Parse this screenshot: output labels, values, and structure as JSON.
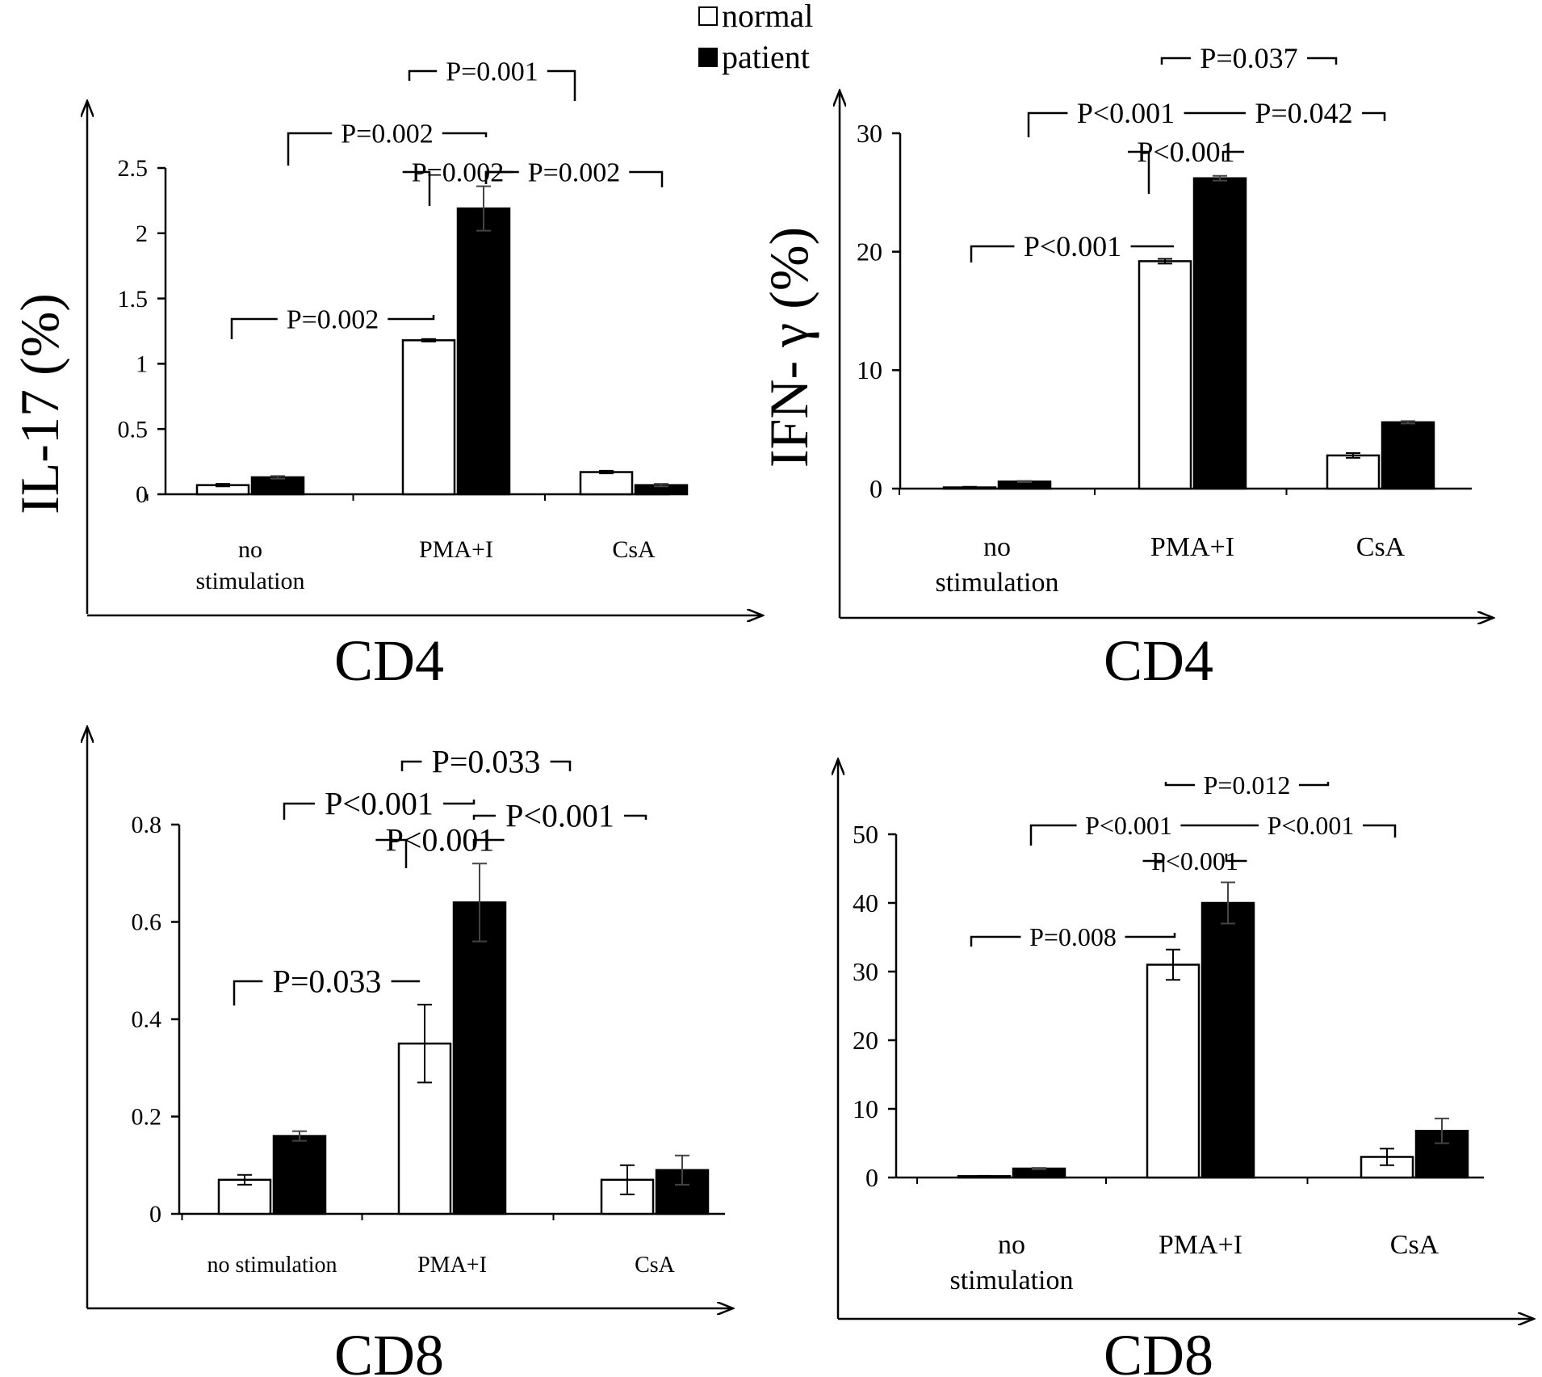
{
  "legend": {
    "entries": [
      {
        "label": "normal",
        "color": "#ffffff"
      },
      {
        "label": "patient",
        "color": "#000000"
      }
    ],
    "placement": "top-center"
  },
  "panel_labels": {
    "il17_ylabel": "IL-17 (%)",
    "ifng_ylabel": "IFN- γ (%)",
    "cd4_left": "CD4",
    "cd4_right": "CD4",
    "cd8_left": "CD8",
    "cd8_right": "CD8"
  },
  "chart_data": [
    {
      "type": "bar",
      "id": "il17-cd4",
      "categories": [
        [
          "no",
          "stimulation"
        ],
        [
          "PMA+I"
        ],
        [
          "CsA"
        ]
      ],
      "series": [
        {
          "name": "normal",
          "values": [
            0.07,
            1.18,
            0.17
          ],
          "errors": [
            0.01,
            0.01,
            0.01
          ]
        },
        {
          "name": "patient",
          "values": [
            0.13,
            2.19,
            0.07
          ],
          "errors": [
            0.01,
            0.17,
            0.01
          ]
        }
      ],
      "ylim": [
        0,
        2.5
      ],
      "yticks": [
        "0",
        "0.5",
        "1",
        "1.5",
        "2",
        "2.5"
      ],
      "ytick_values": [
        0,
        0.5,
        1,
        1.5,
        2,
        2.5
      ],
      "annotations": [
        "P=0.001",
        "P=0.002",
        "P=0.002",
        "P=0.002",
        "P=0.002"
      ]
    },
    {
      "type": "bar",
      "id": "ifng-cd4",
      "categories": [
        [
          "no",
          "stimulation"
        ],
        [
          "PMA+I"
        ],
        [
          "CsA"
        ]
      ],
      "series": [
        {
          "name": "normal",
          "values": [
            0.1,
            19.2,
            2.8
          ],
          "errors": [
            0.05,
            0.2,
            0.2
          ]
        },
        {
          "name": "patient",
          "values": [
            0.6,
            26.2,
            5.6
          ],
          "errors": [
            0.05,
            0.2,
            0.1
          ]
        }
      ],
      "ylim": [
        0,
        30
      ],
      "yticks": [
        "0",
        "10",
        "20",
        "30"
      ],
      "ytick_values": [
        0,
        10,
        20,
        30
      ],
      "annotations": [
        "P=0.037",
        "P<0.001",
        "P<0.001",
        "P<0.001",
        "P=0.042"
      ]
    },
    {
      "type": "bar",
      "id": "il17-cd8",
      "categories": [
        [
          "no stimulation"
        ],
        [
          "PMA+I"
        ],
        [
          "CsA"
        ]
      ],
      "series": [
        {
          "name": "normal",
          "values": [
            0.07,
            0.35,
            0.07
          ],
          "errors": [
            0.01,
            0.08,
            0.03
          ]
        },
        {
          "name": "patient",
          "values": [
            0.16,
            0.64,
            0.09
          ],
          "errors": [
            0.01,
            0.08,
            0.03
          ]
        }
      ],
      "ylim": [
        0,
        0.8
      ],
      "yticks": [
        "0",
        "0.2",
        "0.4",
        "0.6",
        "0.8"
      ],
      "ytick_values": [
        0,
        0.2,
        0.4,
        0.6,
        0.8
      ],
      "annotations": [
        "P=0.033",
        "P<0.001",
        "P<0.001",
        "P<0.001",
        "P=0.033"
      ]
    },
    {
      "type": "bar",
      "id": "ifng-cd8",
      "categories": [
        [
          "no",
          "stimulation"
        ],
        [
          "PMA+I"
        ],
        [
          "CsA"
        ]
      ],
      "series": [
        {
          "name": "normal",
          "values": [
            0.2,
            31,
            3
          ],
          "errors": [
            0.05,
            2.2,
            1.2
          ]
        },
        {
          "name": "patient",
          "values": [
            1.3,
            40,
            6.8
          ],
          "errors": [
            0.1,
            3,
            1.8
          ]
        }
      ],
      "ylim": [
        0,
        50
      ],
      "yticks": [
        "0",
        "10",
        "20",
        "30",
        "40",
        "50"
      ],
      "ytick_values": [
        0,
        10,
        20,
        30,
        40,
        50
      ],
      "annotations": [
        "P=0.008",
        "P<0.001",
        "P<0.001",
        "P<0.001",
        "P=0.012"
      ]
    }
  ]
}
